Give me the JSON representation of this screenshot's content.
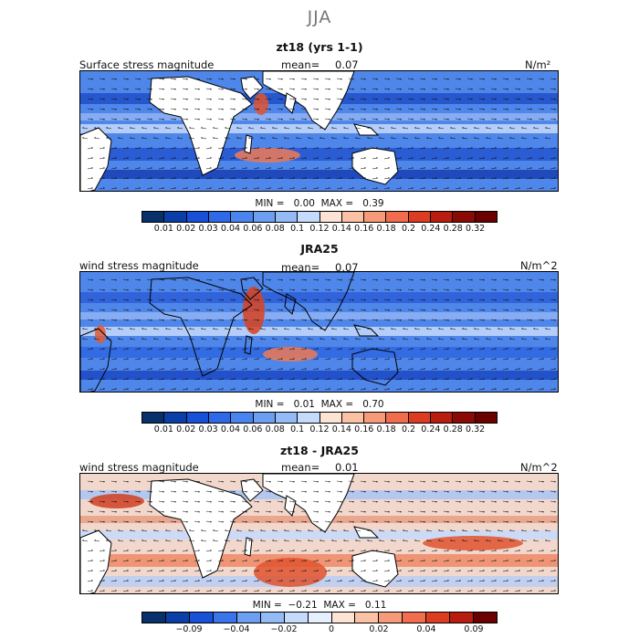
{
  "title": "JJA",
  "panels": [
    {
      "title": "zt18 (yrs 1-1)",
      "field_label": "Surface stress magnitude",
      "mean_label": "mean=",
      "mean_value": "0.07",
      "units": "N/m²",
      "stats": "MIN =   0.00  MAX =   0.39",
      "colorbar_ticks": [
        "0.01",
        "0.02",
        "0.03",
        "0.04",
        "0.06",
        "0.08",
        "0.1",
        "0.12",
        "0.14",
        "0.16",
        "0.18",
        "0.2",
        "0.24",
        "0.28",
        "0.32"
      ]
    },
    {
      "title": "JRA25",
      "field_label": "wind stress magnitude",
      "mean_label": "mean=",
      "mean_value": "0.07",
      "units": "N/m^2",
      "stats": "MIN =   0.01  MAX =   0.70",
      "colorbar_ticks": [
        "0.01",
        "0.02",
        "0.03",
        "0.04",
        "0.06",
        "0.08",
        "0.1",
        "0.12",
        "0.14",
        "0.16",
        "0.18",
        "0.2",
        "0.24",
        "0.28",
        "0.32"
      ]
    },
    {
      "title": "zt18 - JRA25",
      "field_label": "wind stress magnitude",
      "mean_label": "mean=",
      "mean_value": "0.01",
      "units": "N/m^2",
      "stats": "MIN =  −0.21  MAX =   0.11",
      "colorbar_ticks": [
        "−0.09",
        "−0.04",
        "−0.02",
        "0",
        "0.02",
        "0.04",
        "0.09"
      ]
    }
  ],
  "colors": {
    "magnitude_scale": [
      "#08306b",
      "#0b3fa8",
      "#1850d8",
      "#2e6ae8",
      "#4a84ef",
      "#6c9ef2",
      "#95bbf7",
      "#c5dbfb",
      "#fde3d3",
      "#fbc1a5",
      "#f79a7a",
      "#f06d4d",
      "#dc3d22",
      "#b81d10",
      "#8a0a05",
      "#6b0000"
    ],
    "difference_scale": [
      "#08306b",
      "#0b3fa8",
      "#1850d8",
      "#3a74ea",
      "#6c9ef2",
      "#95bbf7",
      "#c5dbfb",
      "#e6effd",
      "#fde3d3",
      "#fbc1a5",
      "#f79a7a",
      "#f06d4d",
      "#dc3d22",
      "#b81d10",
      "#6b0000"
    ]
  }
}
